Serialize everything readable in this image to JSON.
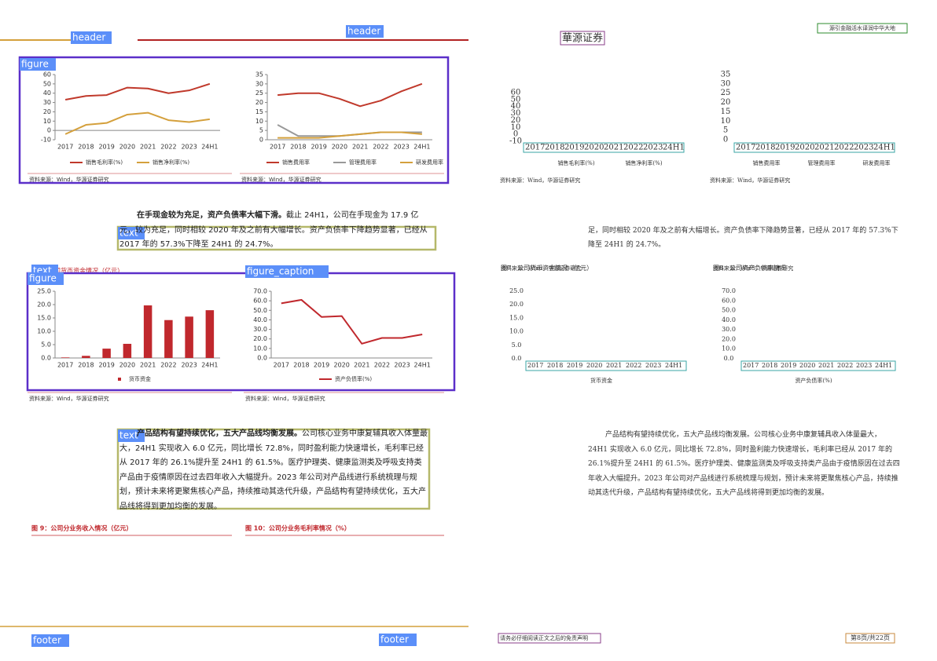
{
  "header": {
    "brand": "華源证券",
    "slogan": "源引金融活水译润中华大地"
  },
  "layout_labels": {
    "header": "header",
    "figure": "figure",
    "text": "text",
    "figure_caption": "figure_caption",
    "footer": "footer"
  },
  "figures": [
    {
      "type": "line",
      "categories": [
        "2017",
        "2018",
        "2019",
        "2020",
        "2021",
        "2022",
        "2023",
        "24H1"
      ],
      "ylim": [
        -10,
        60
      ],
      "yticks": [
        -10,
        0,
        10,
        20,
        30,
        40,
        50,
        60
      ],
      "series": [
        {
          "name": "销售毛利率(%)",
          "color": "#c0392b",
          "values": [
            33,
            37,
            38,
            46,
            45,
            40,
            43,
            50
          ]
        },
        {
          "name": "销售净利率(%)",
          "color": "#d4a03c",
          "values": [
            -4,
            6,
            8,
            17,
            19,
            11,
            9,
            12
          ]
        }
      ],
      "source": "资料来源：Wind，华源证券研究"
    },
    {
      "type": "line",
      "categories": [
        "2017",
        "2018",
        "2019",
        "2020",
        "2021",
        "2022",
        "2023",
        "24H1"
      ],
      "ylim": [
        0,
        35
      ],
      "yticks": [
        0,
        5,
        10,
        15,
        20,
        25,
        30,
        35
      ],
      "series": [
        {
          "name": "销售费用率",
          "color": "#c0392b",
          "values": [
            24,
            25,
            25,
            22,
            18,
            21,
            26,
            30
          ]
        },
        {
          "name": "管理费用率",
          "color": "#999999",
          "values": [
            8,
            2,
            2,
            2,
            3,
            4,
            4,
            4
          ]
        },
        {
          "name": "研发费用率",
          "color": "#d4a03c",
          "values": [
            1,
            1,
            1,
            2,
            3,
            4,
            4,
            3
          ]
        }
      ],
      "source": "资料来源：Wind，华源证券研究"
    },
    {
      "type": "bar",
      "title": "图7：公司货币资金情况（亿元）",
      "categories": [
        "2017",
        "2018",
        "2019",
        "2020",
        "2021",
        "2022",
        "2023",
        "24H1"
      ],
      "ylim": [
        0,
        25
      ],
      "yticks": [
        {
          "value": 0,
          "label": "0.0"
        },
        {
          "value": 5,
          "label": "5.0"
        },
        {
          "value": 10,
          "label": "10.0"
        },
        {
          "value": 15,
          "label": "15.0"
        },
        {
          "value": 20,
          "label": "20.0"
        },
        {
          "value": 25,
          "label": "25.0"
        }
      ],
      "series": [
        {
          "name": "货币资金",
          "color": "#c0282d",
          "values": [
            0.2,
            0.8,
            3.5,
            5.3,
            19.7,
            14.2,
            15.5,
            17.9
          ]
        }
      ],
      "source": "资料来源：Wind，华源证券研究"
    },
    {
      "type": "line",
      "title": "图8：公司资产负债率情况",
      "categories": [
        "2017",
        "2018",
        "2019",
        "2020",
        "2021",
        "2022",
        "2023",
        "24H1"
      ],
      "ylim": [
        0,
        70
      ],
      "yticks": [
        {
          "value": 0,
          "label": "0.0"
        },
        {
          "value": 10,
          "label": "10.0"
        },
        {
          "value": 20,
          "label": "20.0"
        },
        {
          "value": 30,
          "label": "30.0"
        },
        {
          "value": 40,
          "label": "40.0"
        },
        {
          "value": 50,
          "label": "50.0"
        },
        {
          "value": 60,
          "label": "60.0"
        },
        {
          "value": 70,
          "label": "70.0"
        }
      ],
      "series": [
        {
          "name": "资产负债率(%)",
          "color": "#c0282d",
          "values": [
            57.3,
            61,
            43,
            44,
            15,
            21,
            21,
            24.7
          ]
        }
      ],
      "source": "资料来源：Wind，华源证券研究"
    }
  ],
  "paragraphs": [
    {
      "lead": "在手现金较为充足，资产负债率大幅下滑。",
      "body": "截止 24H1，公司在手现金为 17.9 亿元，较为充足，同时相较 2020 年及之前有大幅增长。资产负债率下降趋势显著，已经从 2017 年的 57.3%下降至 24H1 的 24.7%。"
    },
    {
      "lead": "产品结构有望持续优化，五大产品线均衡发展。",
      "body": "公司核心业务中康复辅具收入体量最大，24H1 实现收入 6.0 亿元，同比增长 72.8%，同时盈利能力快速增长，毛利率已经从 2017 年的 26.1%提升至 24H1 的 61.5%。医疗护理类、健康监测类及呼吸支持类产品由于疫情原因在过去四年收入大幅提升。2023 年公司对产品线进行系统梳理与规划，预计未来将更聚焦核心产品，持续推动其迭代升级，产品结构有望持续优化，五大产品线将得到更加均衡的发展。"
    }
  ],
  "captions": [
    "图 9：公司分业务收入情况（亿元）",
    "图 10：公司分业务毛利率情况（%）"
  ],
  "footer": {
    "disclaimer": "请务必仔细阅读正文之后的免责声明",
    "page": "第8页/共22页"
  }
}
